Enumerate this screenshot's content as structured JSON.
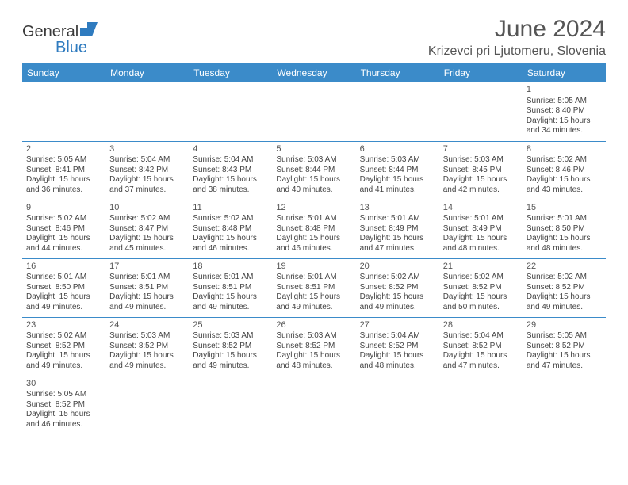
{
  "brand": {
    "name_part1": "General",
    "name_part2": "Blue",
    "mark_color": "#2f7bbf"
  },
  "title": {
    "month_year": "June 2024",
    "location": "Krizevci pri Ljutomeru, Slovenia"
  },
  "colors": {
    "header_bg": "#3b8bc9",
    "header_text": "#ffffff",
    "border": "#3b8bc9",
    "text": "#444444",
    "title_text": "#555555"
  },
  "weekdays": [
    "Sunday",
    "Monday",
    "Tuesday",
    "Wednesday",
    "Thursday",
    "Friday",
    "Saturday"
  ],
  "first_day_index": 6,
  "days": [
    {
      "n": "1",
      "sunrise": "Sunrise: 5:05 AM",
      "sunset": "Sunset: 8:40 PM",
      "dl1": "Daylight: 15 hours",
      "dl2": "and 34 minutes."
    },
    {
      "n": "2",
      "sunrise": "Sunrise: 5:05 AM",
      "sunset": "Sunset: 8:41 PM",
      "dl1": "Daylight: 15 hours",
      "dl2": "and 36 minutes."
    },
    {
      "n": "3",
      "sunrise": "Sunrise: 5:04 AM",
      "sunset": "Sunset: 8:42 PM",
      "dl1": "Daylight: 15 hours",
      "dl2": "and 37 minutes."
    },
    {
      "n": "4",
      "sunrise": "Sunrise: 5:04 AM",
      "sunset": "Sunset: 8:43 PM",
      "dl1": "Daylight: 15 hours",
      "dl2": "and 38 minutes."
    },
    {
      "n": "5",
      "sunrise": "Sunrise: 5:03 AM",
      "sunset": "Sunset: 8:44 PM",
      "dl1": "Daylight: 15 hours",
      "dl2": "and 40 minutes."
    },
    {
      "n": "6",
      "sunrise": "Sunrise: 5:03 AM",
      "sunset": "Sunset: 8:44 PM",
      "dl1": "Daylight: 15 hours",
      "dl2": "and 41 minutes."
    },
    {
      "n": "7",
      "sunrise": "Sunrise: 5:03 AM",
      "sunset": "Sunset: 8:45 PM",
      "dl1": "Daylight: 15 hours",
      "dl2": "and 42 minutes."
    },
    {
      "n": "8",
      "sunrise": "Sunrise: 5:02 AM",
      "sunset": "Sunset: 8:46 PM",
      "dl1": "Daylight: 15 hours",
      "dl2": "and 43 minutes."
    },
    {
      "n": "9",
      "sunrise": "Sunrise: 5:02 AM",
      "sunset": "Sunset: 8:46 PM",
      "dl1": "Daylight: 15 hours",
      "dl2": "and 44 minutes."
    },
    {
      "n": "10",
      "sunrise": "Sunrise: 5:02 AM",
      "sunset": "Sunset: 8:47 PM",
      "dl1": "Daylight: 15 hours",
      "dl2": "and 45 minutes."
    },
    {
      "n": "11",
      "sunrise": "Sunrise: 5:02 AM",
      "sunset": "Sunset: 8:48 PM",
      "dl1": "Daylight: 15 hours",
      "dl2": "and 46 minutes."
    },
    {
      "n": "12",
      "sunrise": "Sunrise: 5:01 AM",
      "sunset": "Sunset: 8:48 PM",
      "dl1": "Daylight: 15 hours",
      "dl2": "and 46 minutes."
    },
    {
      "n": "13",
      "sunrise": "Sunrise: 5:01 AM",
      "sunset": "Sunset: 8:49 PM",
      "dl1": "Daylight: 15 hours",
      "dl2": "and 47 minutes."
    },
    {
      "n": "14",
      "sunrise": "Sunrise: 5:01 AM",
      "sunset": "Sunset: 8:49 PM",
      "dl1": "Daylight: 15 hours",
      "dl2": "and 48 minutes."
    },
    {
      "n": "15",
      "sunrise": "Sunrise: 5:01 AM",
      "sunset": "Sunset: 8:50 PM",
      "dl1": "Daylight: 15 hours",
      "dl2": "and 48 minutes."
    },
    {
      "n": "16",
      "sunrise": "Sunrise: 5:01 AM",
      "sunset": "Sunset: 8:50 PM",
      "dl1": "Daylight: 15 hours",
      "dl2": "and 49 minutes."
    },
    {
      "n": "17",
      "sunrise": "Sunrise: 5:01 AM",
      "sunset": "Sunset: 8:51 PM",
      "dl1": "Daylight: 15 hours",
      "dl2": "and 49 minutes."
    },
    {
      "n": "18",
      "sunrise": "Sunrise: 5:01 AM",
      "sunset": "Sunset: 8:51 PM",
      "dl1": "Daylight: 15 hours",
      "dl2": "and 49 minutes."
    },
    {
      "n": "19",
      "sunrise": "Sunrise: 5:01 AM",
      "sunset": "Sunset: 8:51 PM",
      "dl1": "Daylight: 15 hours",
      "dl2": "and 49 minutes."
    },
    {
      "n": "20",
      "sunrise": "Sunrise: 5:02 AM",
      "sunset": "Sunset: 8:52 PM",
      "dl1": "Daylight: 15 hours",
      "dl2": "and 49 minutes."
    },
    {
      "n": "21",
      "sunrise": "Sunrise: 5:02 AM",
      "sunset": "Sunset: 8:52 PM",
      "dl1": "Daylight: 15 hours",
      "dl2": "and 50 minutes."
    },
    {
      "n": "22",
      "sunrise": "Sunrise: 5:02 AM",
      "sunset": "Sunset: 8:52 PM",
      "dl1": "Daylight: 15 hours",
      "dl2": "and 49 minutes."
    },
    {
      "n": "23",
      "sunrise": "Sunrise: 5:02 AM",
      "sunset": "Sunset: 8:52 PM",
      "dl1": "Daylight: 15 hours",
      "dl2": "and 49 minutes."
    },
    {
      "n": "24",
      "sunrise": "Sunrise: 5:03 AM",
      "sunset": "Sunset: 8:52 PM",
      "dl1": "Daylight: 15 hours",
      "dl2": "and 49 minutes."
    },
    {
      "n": "25",
      "sunrise": "Sunrise: 5:03 AM",
      "sunset": "Sunset: 8:52 PM",
      "dl1": "Daylight: 15 hours",
      "dl2": "and 49 minutes."
    },
    {
      "n": "26",
      "sunrise": "Sunrise: 5:03 AM",
      "sunset": "Sunset: 8:52 PM",
      "dl1": "Daylight: 15 hours",
      "dl2": "and 48 minutes."
    },
    {
      "n": "27",
      "sunrise": "Sunrise: 5:04 AM",
      "sunset": "Sunset: 8:52 PM",
      "dl1": "Daylight: 15 hours",
      "dl2": "and 48 minutes."
    },
    {
      "n": "28",
      "sunrise": "Sunrise: 5:04 AM",
      "sunset": "Sunset: 8:52 PM",
      "dl1": "Daylight: 15 hours",
      "dl2": "and 47 minutes."
    },
    {
      "n": "29",
      "sunrise": "Sunrise: 5:05 AM",
      "sunset": "Sunset: 8:52 PM",
      "dl1": "Daylight: 15 hours",
      "dl2": "and 47 minutes."
    },
    {
      "n": "30",
      "sunrise": "Sunrise: 5:05 AM",
      "sunset": "Sunset: 8:52 PM",
      "dl1": "Daylight: 15 hours",
      "dl2": "and 46 minutes."
    }
  ]
}
